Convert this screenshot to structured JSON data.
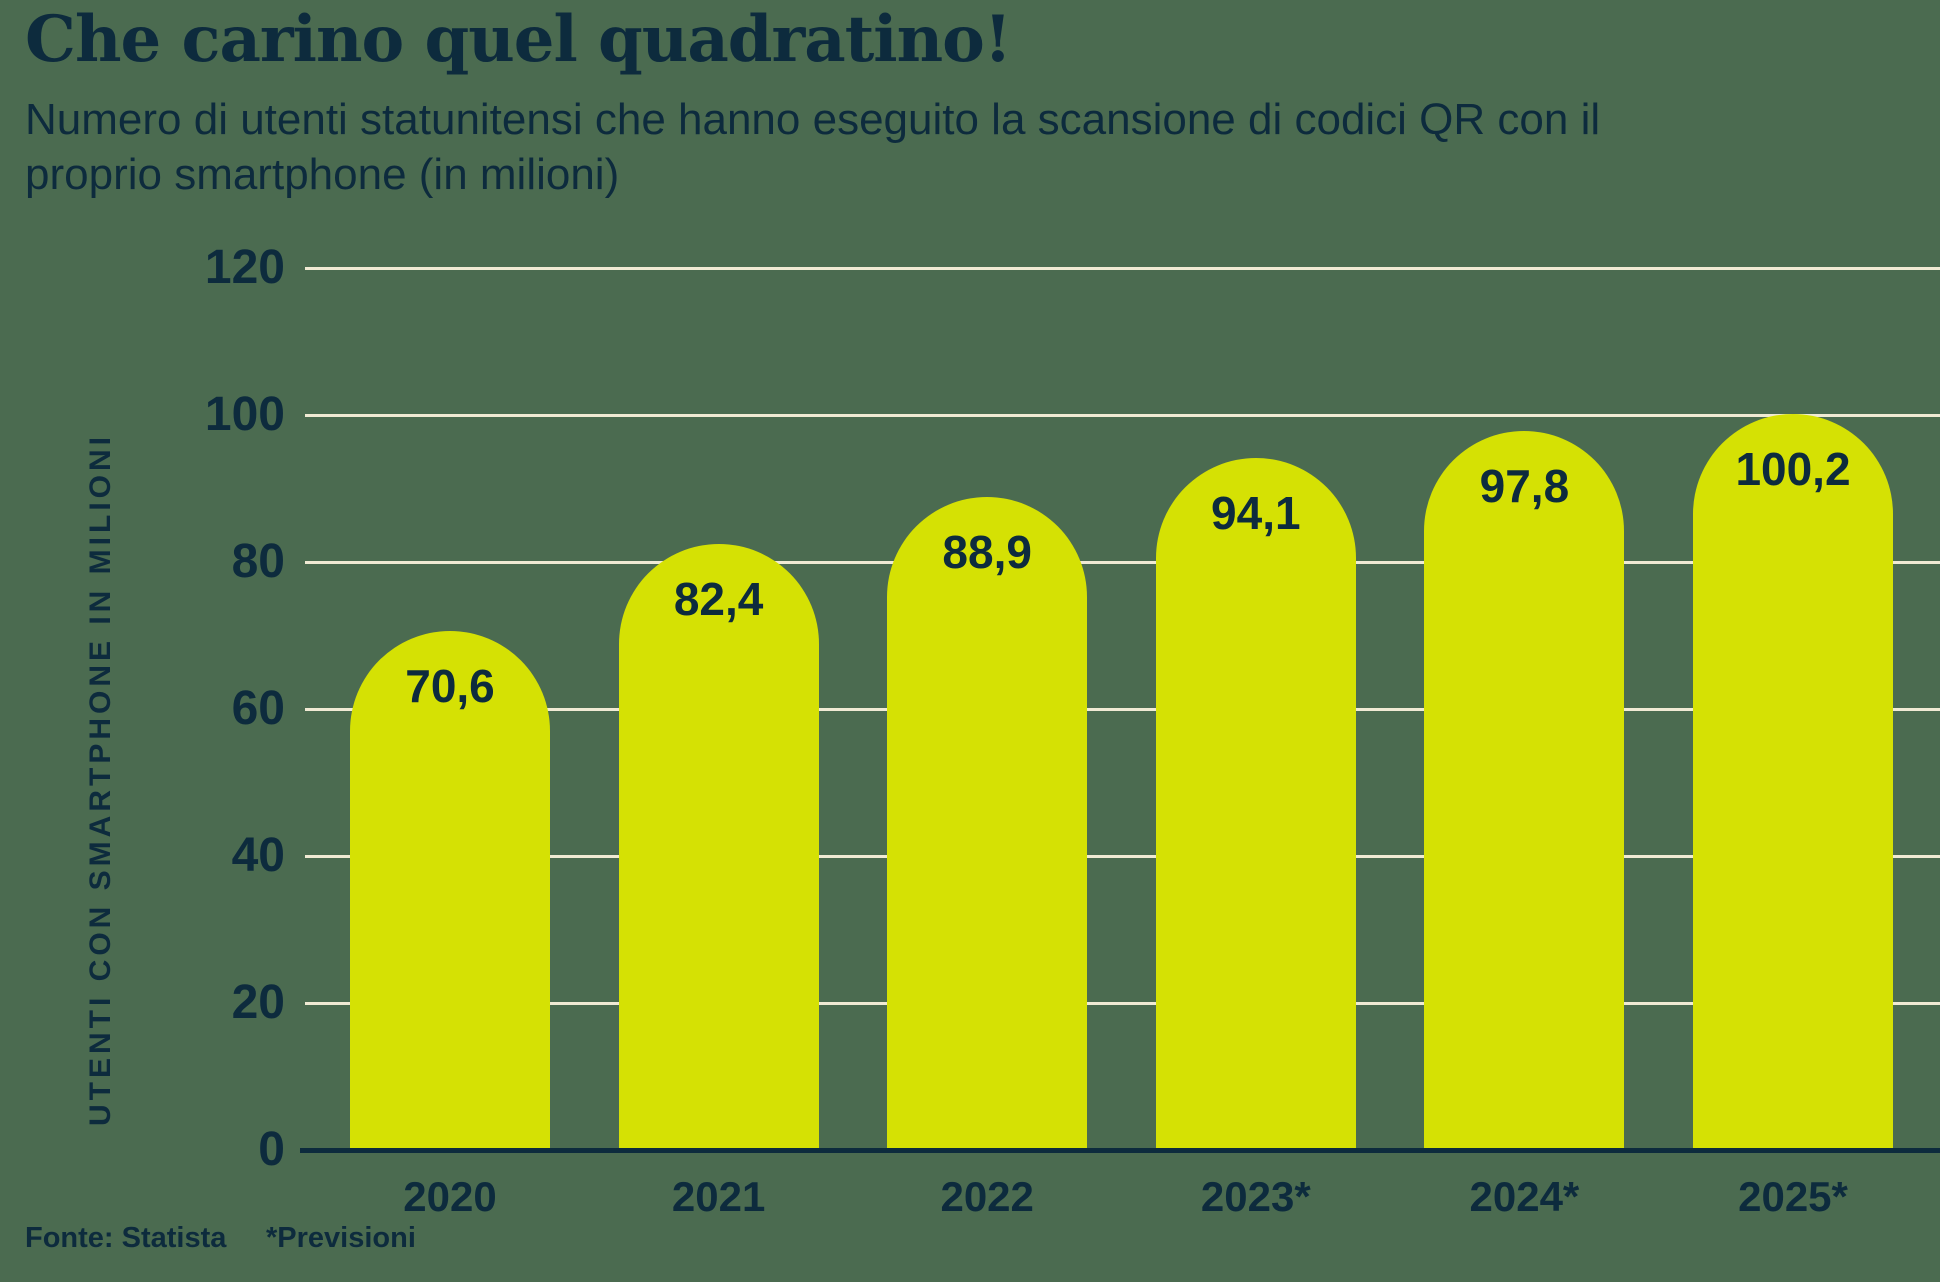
{
  "header": {
    "title": "Che carino quel quadratino!",
    "subtitle": "Numero di utenti statunitensi che hanno eseguito la scansione di codici QR con il proprio smartphone (in milioni)",
    "subtitle_lines": [
      "Numero di utenti statunitensi che hanno eseguito la scansione di codici QR con il",
      "proprio smartphone (in milioni)"
    ]
  },
  "chart_data": {
    "type": "bar",
    "categories": [
      "2020",
      "2021",
      "2022",
      "2023*",
      "2024*",
      "2025*"
    ],
    "values": [
      70.6,
      82.4,
      88.9,
      94.1,
      97.8,
      100.2
    ],
    "value_labels": [
      "70,6",
      "82,4",
      "88,9",
      "94,1",
      "97,8",
      "100,2"
    ],
    "title": "Che carino quel quadratino!",
    "xlabel": "",
    "ylabel": "UTENTI CON SMARTPHONE IN MILIONI",
    "yticks": [
      0,
      20,
      40,
      60,
      80,
      100,
      120
    ],
    "ylim": [
      0,
      120
    ],
    "grid": true,
    "legend": false,
    "bar_corner": "rounded-top"
  },
  "footer": {
    "source": "Fonte: Statista",
    "note": "*Previsioni"
  },
  "colors": {
    "background": "#4b6b50",
    "bar": "#d5e104",
    "text": "#0d2b3d",
    "gridline": "#f0ead4",
    "axis": "#0d2b3d"
  }
}
